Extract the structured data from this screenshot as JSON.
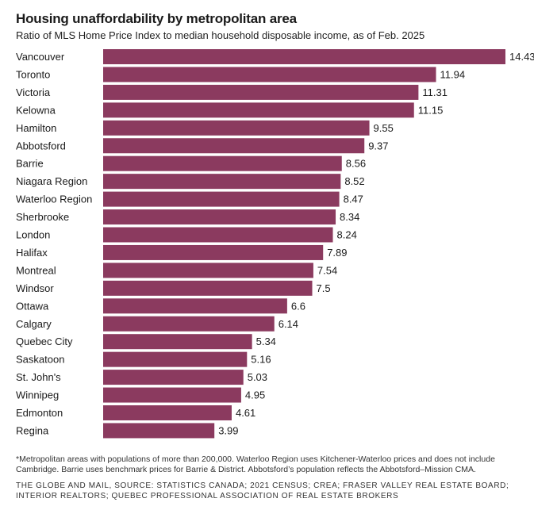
{
  "title": "Housing unaffordability by metropolitan area",
  "subtitle": "Ratio of MLS Home Price Index to median household disposable income, as of Feb. 2025",
  "footnote": "*Metropolitan areas with populations of more than 200,000. Waterloo Region uses Kitchener-Waterloo prices and does not include Cambridge. Barrie uses benchmark prices for Barrie & District. Abbotsford’s population reflects the Abbotsford–Mission CMA.",
  "source": "The Globe and Mail, Source: Statistics Canada; 2021 Census; CREA; Fraser Valley Real Estate Board; Interior Realtors; Quebec Professional Association of Real Estate Brokers",
  "chart_data": {
    "type": "bar",
    "orientation": "horizontal",
    "title": "Housing unaffordability by metropolitan area",
    "subtitle": "Ratio of MLS Home Price Index to median household disposable income, as of Feb. 2025",
    "bar_color": "#8b3a5f",
    "categories": [
      "Vancouver",
      "Toronto",
      "Victoria",
      "Kelowna",
      "Hamilton",
      "Abbotsford",
      "Barrie",
      "Niagara Region",
      "Waterloo Region",
      "Sherbrooke",
      "London",
      "Halifax",
      "Montreal",
      "Windsor",
      "Ottawa",
      "Calgary",
      "Quebec City",
      "Saskatoon",
      "St. John's",
      "Winnipeg",
      "Edmonton",
      "Regina"
    ],
    "values": [
      14.43,
      11.94,
      11.31,
      11.15,
      9.55,
      9.37,
      8.56,
      8.52,
      8.47,
      8.34,
      8.24,
      7.89,
      7.54,
      7.5,
      6.6,
      6.14,
      5.34,
      5.16,
      5.03,
      4.95,
      4.61,
      3.99
    ],
    "value_labels": [
      "14.43",
      "11.94",
      "11.31",
      "11.15",
      "9.55",
      "9.37",
      "8.56",
      "8.52",
      "8.47",
      "8.34",
      "8.24",
      "7.89",
      "7.54",
      "7.5",
      "6.6",
      "6.14",
      "5.34",
      "5.16",
      "5.03",
      "4.95",
      "4.61",
      "3.99"
    ],
    "xlim": [
      0,
      14.43
    ],
    "grid": false,
    "legend": "none"
  }
}
